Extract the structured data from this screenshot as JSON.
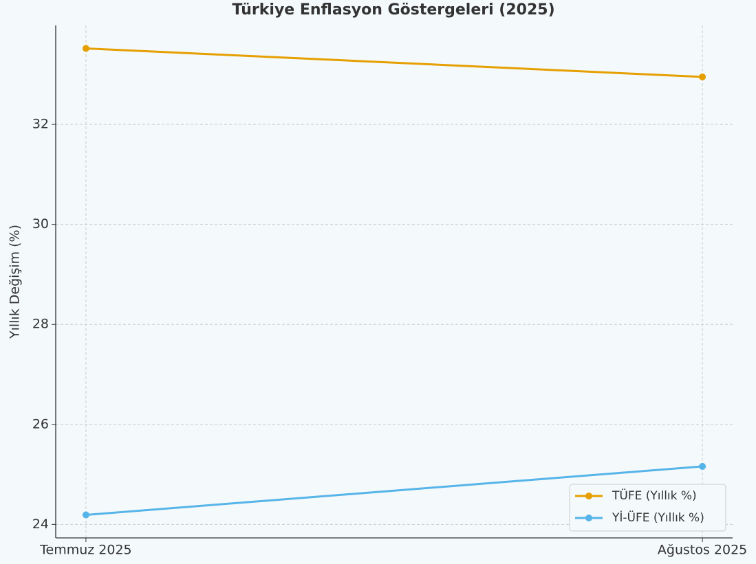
{
  "chart_data": {
    "type": "line",
    "title": "Türkiye Enflasyon Göstergeleri (2025)",
    "y_label": "Yıllık Değişim (%)",
    "categories": [
      "Temmuz 2025",
      "Ağustos 2025"
    ],
    "series": [
      {
        "name": "TÜFE (Yıllık %)",
        "color": "#e69f00",
        "values": [
          33.52,
          32.95
        ]
      },
      {
        "name": "Yİ-ÜFE (Yıllık %)",
        "color": "#56b4e9",
        "values": [
          24.19,
          25.16
        ]
      }
    ],
    "ylim": [
      23.73,
      33.98
    ],
    "yticks": [
      24,
      26,
      28,
      30,
      32
    ],
    "grid": true,
    "legend": "lower right"
  }
}
